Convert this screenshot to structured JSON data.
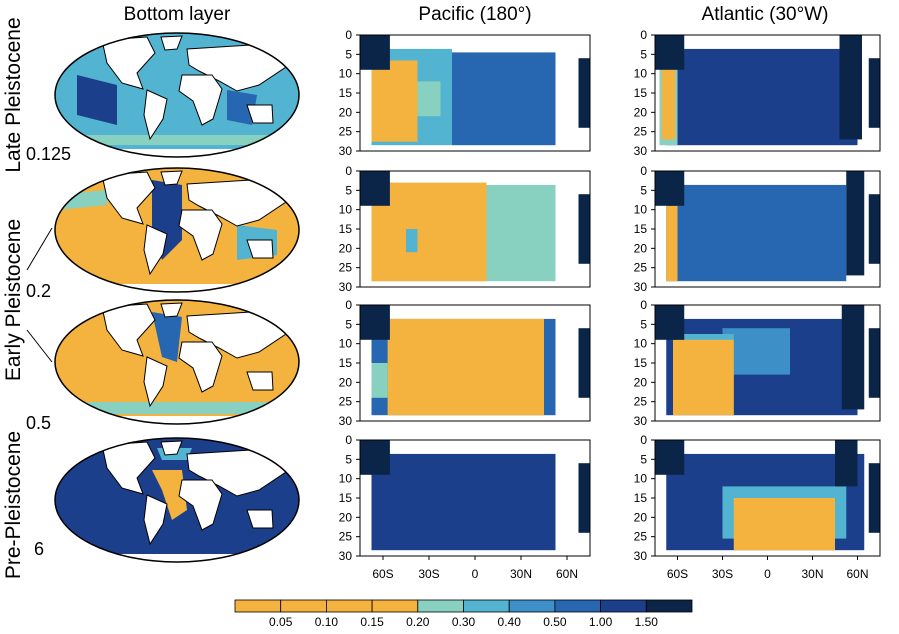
{
  "column_titles": [
    "Bottom layer",
    "Pacific (180°)",
    "Atlantic (30°W)"
  ],
  "row_labels": [
    "Late Pleistocene",
    "Early Pleistocene",
    "Pre-Pleistocene"
  ],
  "panel_values": [
    0.125,
    0.2,
    0.5,
    6
  ],
  "depth_ticks": [
    0,
    5,
    10,
    15,
    20,
    25,
    30
  ],
  "latitude_ticks": [
    "60S",
    "30S",
    "0",
    "30N",
    "60N"
  ],
  "colorbar": {
    "labels": [
      "0.05",
      "0.10",
      "0.15",
      "0.20",
      "0.30",
      "0.40",
      "0.50",
      "1.00",
      "1.50"
    ]
  }
}
